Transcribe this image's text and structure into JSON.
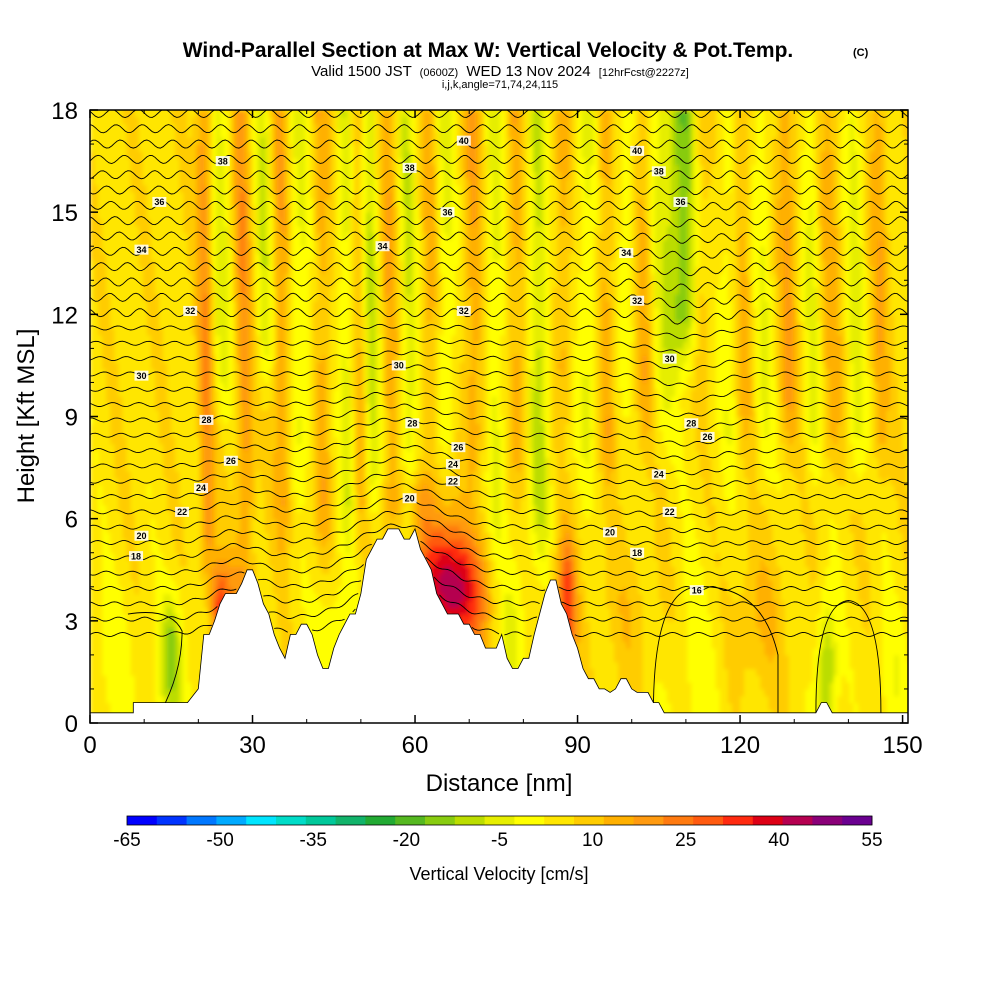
{
  "title": {
    "main": "Wind-Parallel Section at Max W: Vertical Velocity & Pot.Temp.",
    "copyright": "(C)",
    "valid_prefix": "Valid 1500 JST",
    "valid_utc": "(0600Z)",
    "valid_date": "WED 13 Nov 2024",
    "forecast": "[12hrFcst@2227z]",
    "section_params": "i,j,k,angle=71,74,24,115"
  },
  "chart_data": {
    "type": "heatmap",
    "xlabel": "Distance [nm]",
    "ylabel": "Height [Kft MSL]",
    "xlim": [
      0,
      151
    ],
    "ylim": [
      0,
      18
    ],
    "x_ticks": [
      0,
      30,
      60,
      90,
      120,
      150
    ],
    "y_ticks": [
      0,
      3,
      6,
      9,
      12,
      15,
      18
    ],
    "colorbar": {
      "title": "Vertical Velocity [cm/s]",
      "tick_labels": [
        -65,
        -50,
        -35,
        -20,
        -5,
        10,
        25,
        40,
        55
      ],
      "min": -65,
      "max": 55,
      "step": 5,
      "colors": [
        "#0000ff",
        "#0033ff",
        "#0077ff",
        "#00aaff",
        "#00e5ff",
        "#00dcc8",
        "#00c89a",
        "#11b36a",
        "#22aa33",
        "#55b820",
        "#88cc10",
        "#bbdd00",
        "#e6ee00",
        "#ffff00",
        "#ffe600",
        "#ffcc00",
        "#ffb000",
        "#ff9a10",
        "#ff7a10",
        "#ff5a10",
        "#ff2a10",
        "#dd0015",
        "#b50050",
        "#8a0078",
        "#6a0090"
      ]
    },
    "terrain_profile": {
      "distance_nm": [
        0,
        8,
        8,
        18,
        20,
        21,
        22,
        23,
        24,
        25,
        26,
        27,
        28,
        29,
        30,
        31,
        32,
        33,
        34,
        35,
        36,
        37,
        38,
        39,
        40,
        41,
        42,
        43,
        44,
        45,
        46,
        47,
        48,
        49,
        50,
        51,
        52,
        53,
        54,
        55,
        56,
        57,
        58,
        59,
        60,
        61,
        62,
        63,
        64,
        65,
        66,
        67,
        68,
        69,
        70,
        71,
        72,
        73,
        74,
        75,
        76,
        77,
        78,
        79,
        80,
        81,
        82,
        83,
        84,
        85,
        86,
        87,
        88,
        89,
        90,
        91,
        92,
        93,
        94,
        95,
        96,
        97,
        98,
        99,
        100,
        101,
        102,
        103,
        104,
        105,
        106,
        107,
        108,
        120,
        130,
        134,
        135,
        136,
        137,
        138,
        145,
        151
      ],
      "height_kft": [
        0.3,
        0.3,
        0.6,
        0.6,
        1.0,
        2.6,
        2.6,
        3.0,
        3.5,
        3.8,
        3.8,
        3.8,
        4.1,
        4.5,
        4.5,
        4.1,
        3.5,
        3.2,
        2.6,
        2.2,
        1.9,
        2.6,
        2.6,
        2.9,
        2.9,
        2.6,
        2.0,
        1.6,
        1.6,
        2.2,
        2.6,
        2.9,
        3.2,
        3.2,
        3.8,
        4.8,
        5.1,
        5.4,
        5.4,
        5.7,
        5.7,
        5.7,
        5.4,
        5.4,
        5.7,
        5.1,
        4.8,
        4.5,
        3.8,
        3.5,
        3.2,
        3.2,
        3.2,
        2.9,
        2.9,
        2.6,
        2.6,
        2.2,
        2.2,
        2.2,
        2.6,
        1.9,
        1.6,
        1.6,
        1.9,
        1.9,
        2.6,
        3.2,
        3.8,
        4.2,
        4.2,
        3.5,
        3.2,
        2.6,
        2.2,
        1.6,
        1.3,
        1.3,
        1.0,
        1.0,
        0.9,
        1.0,
        1.3,
        1.3,
        1.0,
        0.9,
        0.9,
        0.9,
        0.6,
        0.6,
        0.3,
        0.3,
        0.3,
        0.3,
        0.3,
        0.3,
        0.6,
        0.6,
        0.3,
        0.3,
        0.3,
        0.3
      ]
    },
    "theta_contours": [
      {
        "level": 16,
        "label": "16",
        "label_positions": [
          [
            112,
            3.9
          ]
        ]
      },
      {
        "level": 18,
        "label": "18",
        "label_positions": [
          [
            8.5,
            4.9
          ],
          [
            101,
            5.0
          ]
        ]
      },
      {
        "level": 20,
        "label": "20",
        "label_positions": [
          [
            9.5,
            5.5
          ],
          [
            59,
            6.6
          ],
          [
            96,
            5.6
          ]
        ]
      },
      {
        "level": 22,
        "label": "22",
        "label_positions": [
          [
            17,
            6.2
          ],
          [
            67,
            7.1
          ],
          [
            107,
            6.2
          ]
        ]
      },
      {
        "level": 24,
        "label": "24",
        "label_positions": [
          [
            20.5,
            6.9
          ],
          [
            67,
            7.6
          ],
          [
            105,
            7.3
          ]
        ]
      },
      {
        "level": 26,
        "label": "26",
        "label_positions": [
          [
            26,
            7.7
          ],
          [
            68,
            8.1
          ],
          [
            114,
            8.4
          ]
        ]
      },
      {
        "level": 28,
        "label": "28",
        "label_positions": [
          [
            21.5,
            8.9
          ],
          [
            59.5,
            8.8
          ],
          [
            111,
            8.8
          ]
        ]
      },
      {
        "level": 30,
        "label": "30",
        "label_positions": [
          [
            9.5,
            10.2
          ],
          [
            57,
            10.5
          ],
          [
            107,
            10.7
          ]
        ]
      },
      {
        "level": 32,
        "label": "32",
        "label_positions": [
          [
            18.5,
            12.1
          ],
          [
            69,
            12.1
          ],
          [
            101,
            12.4
          ]
        ]
      },
      {
        "level": 34,
        "label": "34",
        "label_positions": [
          [
            9.5,
            13.9
          ],
          [
            54,
            14.0
          ],
          [
            99,
            13.8
          ]
        ]
      },
      {
        "level": 36,
        "label": "36",
        "label_positions": [
          [
            12.8,
            15.3
          ],
          [
            66,
            15.0
          ],
          [
            109,
            15.3
          ]
        ]
      },
      {
        "level": 38,
        "label": "38",
        "label_positions": [
          [
            24.5,
            16.5
          ],
          [
            59,
            16.3
          ],
          [
            105,
            16.2
          ]
        ]
      },
      {
        "level": 40,
        "label": "40",
        "label_positions": [
          [
            69,
            17.1
          ],
          [
            101,
            16.8
          ]
        ]
      }
    ]
  }
}
